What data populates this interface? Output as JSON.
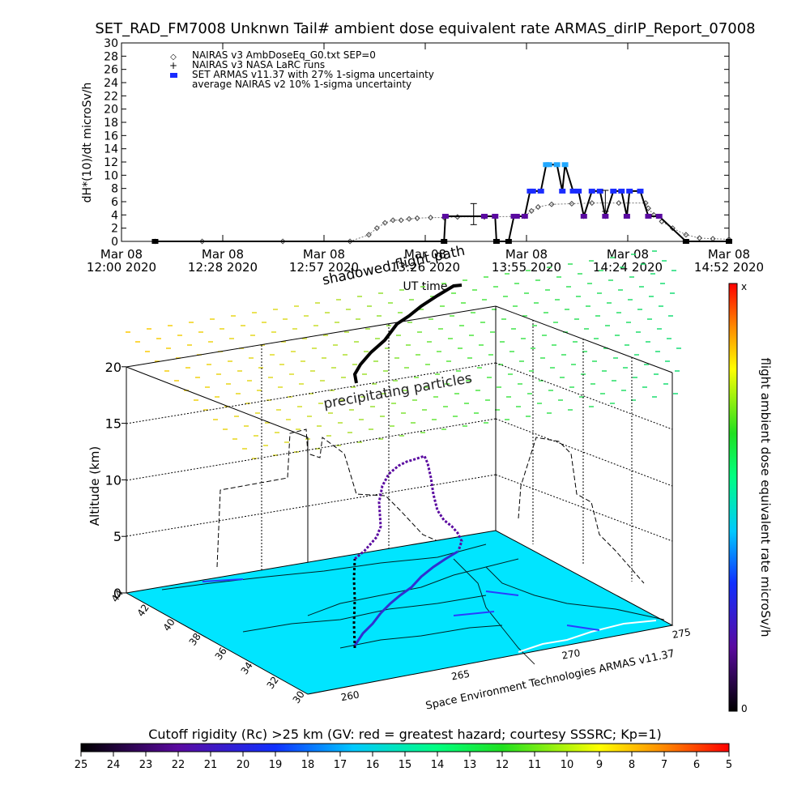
{
  "chart_data": [
    {
      "type": "line",
      "title": "SET_RAD_FM7008  Unknwn Tail#  ambient dose equivalent rate ARMAS_dirIP_Report_07008",
      "xlabel": "UT time",
      "ylabel": "dH*(10)/dt microSv/h",
      "ylim": [
        0,
        30
      ],
      "yticks": [
        "0",
        "2",
        "4",
        "6",
        "8",
        "10",
        "12",
        "14",
        "16",
        "18",
        "20",
        "22",
        "24",
        "26",
        "28",
        "30"
      ],
      "xticks": [
        {
          "date": "Mar 08",
          "time": "12:00 2020"
        },
        {
          "date": "Mar 08",
          "time": "12:28 2020"
        },
        {
          "date": "Mar 08",
          "time": "12:57 2020"
        },
        {
          "date": "Mar 08",
          "time": "13:26 2020"
        },
        {
          "date": "Mar 08",
          "time": "13:55 2020"
        },
        {
          "date": "Mar 08",
          "time": "14:24 2020"
        },
        {
          "date": "Mar 08",
          "time": "14:52 2020"
        }
      ],
      "legend": [
        {
          "symbol": "◇",
          "label": "NAIRAS v3 AmbDoseEq_G0.txt SEP=0"
        },
        {
          "symbol": "+",
          "label": "NAIRAS v3 NASA LaRC runs"
        },
        {
          "symbol": "■",
          "label": "SET ARMAS v11.37 with 27% 1-sigma uncertainty"
        },
        {
          "symbol": "",
          "label": "average NAIRAS v2 10% 1-sigma uncertainty"
        }
      ],
      "x_units": "minutes since 12:00 UT",
      "series": [
        {
          "name": "NAIRAS v3 AmbDoseEq_G0.txt SEP=0",
          "x": [
            25,
            60,
            120,
            170,
            184,
            190,
            196,
            202,
            208,
            214,
            220,
            230,
            240,
            250,
            270,
            300,
            305,
            310,
            320,
            335,
            350,
            370,
            390,
            392,
            396,
            402,
            410,
            420,
            430,
            440,
            452
          ],
          "y": [
            0,
            0,
            0,
            0,
            1,
            2,
            2.8,
            3.2,
            3.2,
            3.4,
            3.5,
            3.6,
            3.6,
            3.7,
            3.7,
            3.8,
            4.6,
            5.2,
            5.6,
            5.7,
            5.8,
            5.8,
            5.8,
            5,
            4,
            3,
            2,
            1,
            0.5,
            0.4,
            0.3
          ]
        },
        {
          "name": "SET ARMAS v11.37 with 27% 1-sigma uncertainty",
          "x": [
            25,
            240,
            241,
            270,
            278,
            279,
            288,
            292,
            294,
            300,
            304,
            306,
            312,
            316,
            318,
            324,
            328,
            330,
            336,
            340,
            344,
            350,
            356,
            360,
            366,
            372,
            376,
            378,
            386,
            392,
            400,
            420,
            452
          ],
          "y": [
            0,
            0,
            3.8,
            3.8,
            3.8,
            0,
            0,
            3.8,
            3.8,
            3.8,
            7.6,
            7.6,
            7.6,
            11.6,
            11.6,
            11.6,
            7.6,
            11.6,
            7.6,
            7.6,
            3.8,
            7.6,
            7.6,
            3.8,
            7.6,
            7.6,
            3.8,
            7.6,
            7.6,
            3.8,
            3.8,
            0,
            0
          ]
        },
        {
          "name": "NAIRAS v3 NASA LaRC runs",
          "x": [
            262,
            360
          ],
          "y": [
            4.0,
            6.0
          ]
        }
      ]
    },
    {
      "type": "scatter",
      "title": "",
      "ylabel": "Altitude (km)",
      "zticks": [
        "0",
        "5",
        "10",
        "15",
        "20"
      ],
      "lat_ticks": [
        "30",
        "32",
        "34",
        "36",
        "38",
        "40",
        "42",
        "44"
      ],
      "lon_ticks": [
        "260",
        "265",
        "270",
        "275"
      ],
      "annotations": {
        "shadowed": "shadowed flight path",
        "precip": "precipitating particles",
        "credit": "Space Environment Technologies ARMAS v11.37"
      },
      "colorbar_right": {
        "label": "flight ambient dose equivalent rate microSv/h",
        "max": "x",
        "min": "0"
      },
      "colorbar_bottom": {
        "label": "Cutoff rigidity (Rc) >25 km (GV: red = greatest hazard; courtesy SSSRC; Kp=1)",
        "ticks": [
          "25",
          "24",
          "23",
          "22",
          "21",
          "20",
          "19",
          "18",
          "17",
          "16",
          "15",
          "14",
          "13",
          "12",
          "11",
          "10",
          "9",
          "8",
          "7",
          "6",
          "5"
        ]
      }
    }
  ]
}
